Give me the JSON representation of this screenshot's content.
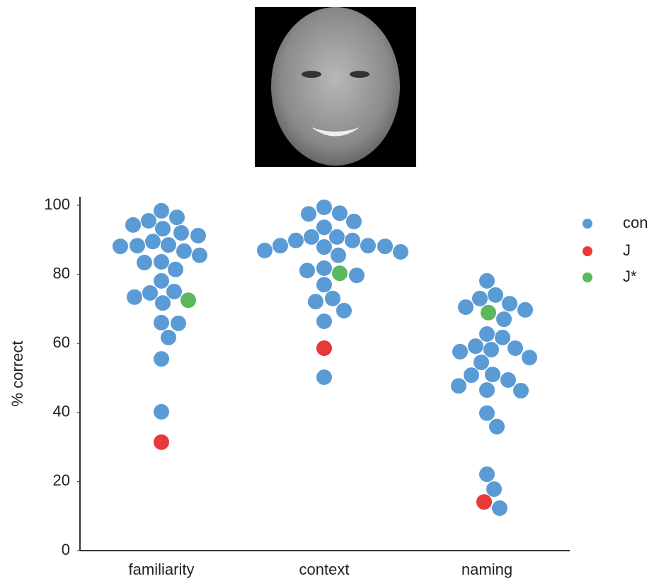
{
  "chart_data": {
    "type": "swarm",
    "categories": [
      "familiarity",
      "context",
      "naming"
    ],
    "y_label": "% correct",
    "ylim": [
      0,
      100
    ],
    "yticks": [
      0,
      20,
      40,
      60,
      80,
      100
    ],
    "grid": false,
    "legend": "right",
    "series": [
      {
        "name": "con",
        "color": "#5b9bd5",
        "values": [
          [
            98.4,
            93.2,
            91.2,
            96.5,
            94.3,
            92.0,
            95.5,
            86.7,
            85.5,
            88.1,
            88.3,
            83.6,
            89.5,
            88.5,
            81.4,
            83.4,
            78.1,
            74.6,
            71.7,
            73.4,
            75.0,
            65.8,
            66.0,
            61.7,
            55.5,
            40.2
          ],
          [
            90.8,
            89.8,
            88.3,
            97.7,
            97.5,
            93.6,
            95.3,
            99.4,
            88.1,
            86.5,
            85.5,
            86.9,
            87.9,
            90.8,
            89.8,
            88.3,
            81.1,
            79.7,
            77.0,
            81.8,
            73.0,
            72.1,
            69.5,
            66.4,
            50.2
          ],
          [
            78.1,
            73.0,
            74.0,
            71.5,
            69.7,
            67.0,
            70.5,
            62.7,
            61.7,
            58.6,
            59.2,
            57.6,
            55.9,
            54.5,
            58.2,
            51.0,
            49.4,
            50.8,
            47.7,
            46.5,
            46.3,
            39.8,
            35.9,
            22.1,
            17.8,
            12.3
          ]
        ]
      },
      {
        "name": "J",
        "color": "#e8393a",
        "values": [
          [
            31.4
          ],
          [
            58.6
          ],
          [
            14.1
          ]
        ]
      },
      {
        "name": "J*",
        "color": "#5cb85c",
        "values": [
          [
            72.5
          ],
          [
            80.3
          ],
          [
            68.9
          ]
        ]
      }
    ]
  }
}
